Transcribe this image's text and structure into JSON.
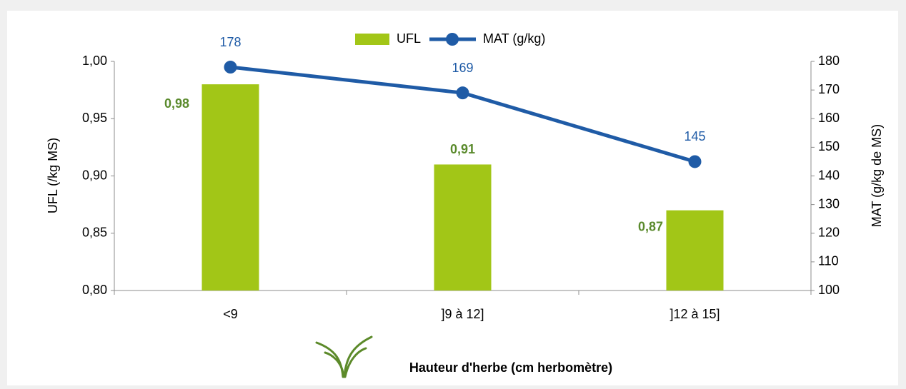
{
  "chart_data": {
    "type": "combo",
    "x_label": "Hauteur d'herbe (cm herbomètre)",
    "y_label": "UFL (/kg MS)",
    "y2_label": "MAT (g/kg de MS)",
    "categories": [
      "<9",
      "]9 à 12]",
      "]12 à 15]"
    ],
    "series": [
      {
        "name": "UFL",
        "type": "bar",
        "color": "#a2c617",
        "label_color": "#5a8a2c",
        "values": [
          0.98,
          0.91,
          0.87
        ],
        "value_labels": [
          "0,98",
          "0,91",
          "0,87"
        ]
      },
      {
        "name": "MAT (g/kg)",
        "type": "line",
        "axis": "y2",
        "color": "#1f5ba6",
        "label_color": "#1f5ba6",
        "values": [
          178,
          169,
          145
        ]
      }
    ],
    "ylim": [
      0.8,
      1.0
    ],
    "yticks": [
      {
        "value": 0.8,
        "label": "0,80"
      },
      {
        "value": 0.85,
        "label": "0,85"
      },
      {
        "value": 0.9,
        "label": "0,90"
      },
      {
        "value": 0.95,
        "label": "0,95"
      },
      {
        "value": 1.0,
        "label": "1,00"
      }
    ],
    "y2lim": [
      100,
      180
    ],
    "y2ticks": [
      100,
      110,
      120,
      130,
      140,
      150,
      160,
      170,
      180
    ],
    "legend": "top"
  }
}
